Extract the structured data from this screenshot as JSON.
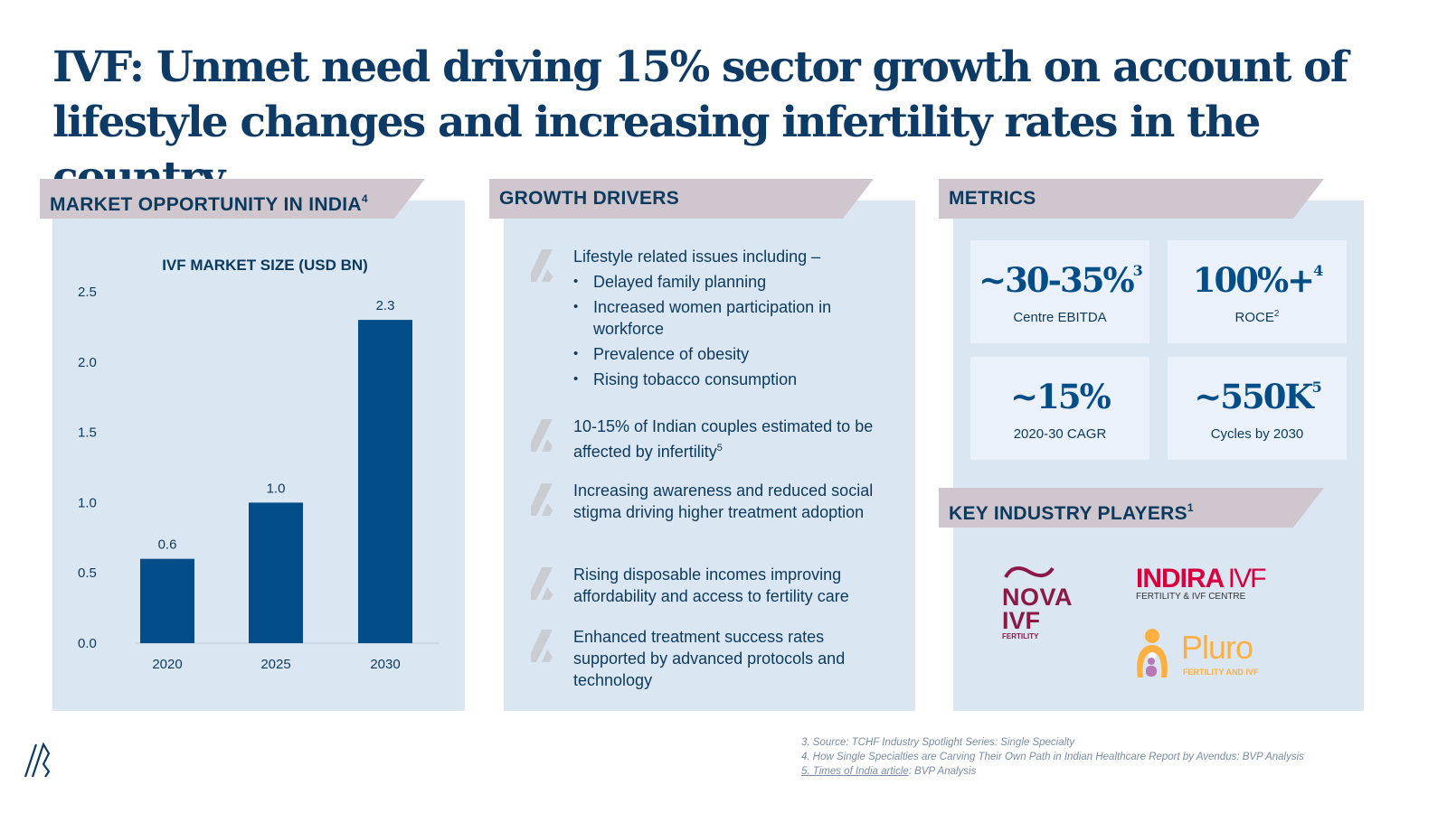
{
  "title": "IVF: Unmet need driving 15% sector growth on account of lifestyle changes and increasing infertility rates in the country",
  "sections": {
    "market": {
      "label": "MARKET OPPORTUNITY IN INDIA",
      "sup": "4"
    },
    "drivers": {
      "label": "GROWTH DRIVERS"
    },
    "metrics": {
      "label": "METRICS"
    },
    "players": {
      "label": "KEY INDUSTRY PLAYERS",
      "sup": "1"
    }
  },
  "chart_data": {
    "type": "bar",
    "title": "IVF MARKET SIZE (USD BN)",
    "categories": [
      "2020",
      "2025",
      "2030"
    ],
    "values": [
      0.6,
      1.0,
      2.3
    ],
    "data_labels": [
      "0.6",
      "1.0",
      "2.3"
    ],
    "ylim": [
      0,
      2.5
    ],
    "yticks": [
      "0.0",
      "0.5",
      "1.0",
      "1.5",
      "2.0",
      "2.5"
    ],
    "grid": false,
    "color": "#034d88"
  },
  "drivers": [
    {
      "text": "Lifestyle related issues including –",
      "subs": [
        "Delayed family planning",
        "Increased women participation in workforce",
        "Prevalence of obesity",
        "Rising tobacco consumption"
      ]
    },
    {
      "text": "10-15% of Indian couples estimated to be affected by infertility",
      "sup": "5"
    },
    {
      "text": "Increasing awareness and reduced social stigma driving higher treatment adoption"
    },
    {
      "text": "Rising disposable incomes improving affordability and access to fertility care"
    },
    {
      "text": "Enhanced treatment success rates supported by advanced protocols and technology"
    }
  ],
  "metrics": [
    {
      "value": "~30-35%",
      "sup": "3",
      "label": "Centre EBITDA"
    },
    {
      "value": "100%+",
      "sup": "4",
      "label": "ROCE",
      "label_sup": "2"
    },
    {
      "value": "~15%",
      "sup": "",
      "label": "2020-30 CAGR"
    },
    {
      "value": "~550K",
      "sup": "5",
      "label": "Cycles by 2030"
    }
  ],
  "players": {
    "nova": {
      "name": "NOVA",
      "sub": "IVF",
      "tag": "FERTILITY",
      "color": "#8a1a45"
    },
    "indira": {
      "name": "INDIRA",
      "suffix": "IVF",
      "tag": "FERTILITY & IVF CENTRE",
      "color": "#d8003c"
    },
    "pluro": {
      "name": "Pluro",
      "tag": "FERTILITY AND IVF",
      "color": "#fbb040"
    }
  },
  "footnotes": [
    "3. Source: TCHF Industry Spotlight Series: Single Specialty",
    "4. How Single Specialties are Carving Their Own Path in Indian Healthcare Report by Avendus: BVP Analysis",
    {
      "link": "5. Times of India article",
      "rest": ": BVP Analysis"
    }
  ]
}
